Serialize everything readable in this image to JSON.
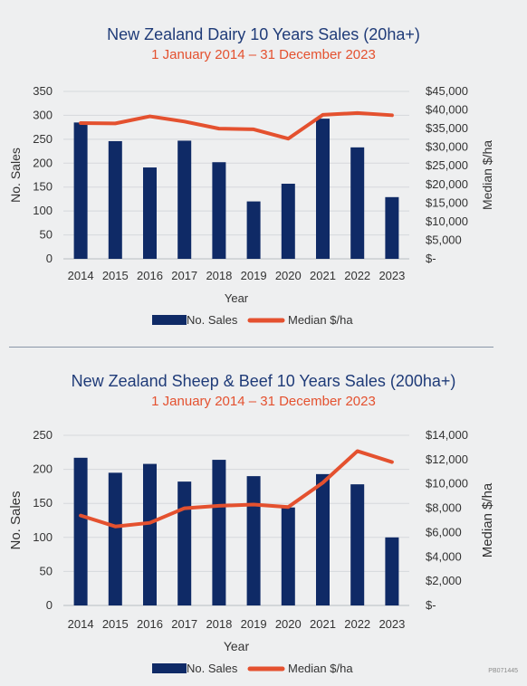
{
  "chart_data": [
    {
      "type": "bar",
      "title": "New Zealand Dairy 10 Years Sales (20ha+)",
      "subtitle": "1 January 2014 – 31 December 2023",
      "categories": [
        "2014",
        "2015",
        "2016",
        "2017",
        "2018",
        "2019",
        "2020",
        "2021",
        "2022",
        "2023"
      ],
      "xlabel": "Year",
      "ylabel": "No. Sales",
      "y2label": "Median $/ha",
      "ylim": [
        0,
        350
      ],
      "yticks": [
        "0",
        "50",
        "100",
        "150",
        "200",
        "250",
        "300",
        "350"
      ],
      "y2lim": [
        0,
        45000
      ],
      "y2ticks": [
        "$-",
        "$5,000",
        "$10,000",
        "$15,000",
        "$20,000",
        "$25,000",
        "$30,000",
        "$35,000",
        "$40,000",
        "$45,000"
      ],
      "series": [
        {
          "name": "No. Sales",
          "type": "bar",
          "axis": "left",
          "values": [
            285,
            246,
            191,
            247,
            202,
            120,
            157,
            293,
            233,
            129
          ]
        },
        {
          "name": "Median $/ha",
          "type": "line",
          "axis": "right",
          "values": [
            36500,
            36400,
            38300,
            36900,
            35000,
            34800,
            32300,
            38700,
            39200,
            38600
          ]
        }
      ],
      "grid": true,
      "legend": "bottom"
    },
    {
      "type": "bar",
      "title": "New Zealand Sheep & Beef 10 Years Sales (200ha+)",
      "subtitle": "1 January 2014 – 31 December 2023",
      "categories": [
        "2014",
        "2015",
        "2016",
        "2017",
        "2018",
        "2019",
        "2020",
        "2021",
        "2022",
        "2023"
      ],
      "xlabel": "Year",
      "ylabel": "No. Sales",
      "y2label": "Median $/ha",
      "ylim": [
        0,
        250
      ],
      "yticks": [
        "0",
        "50",
        "100",
        "150",
        "200",
        "250"
      ],
      "y2lim": [
        0,
        14000
      ],
      "y2ticks": [
        "$-",
        "$2,000",
        "$4,000",
        "$6,000",
        "$8,000",
        "$10,000",
        "$12,000",
        "$14,000"
      ],
      "series": [
        {
          "name": "No. Sales",
          "type": "bar",
          "axis": "left",
          "values": [
            217,
            195,
            208,
            182,
            214,
            190,
            144,
            193,
            178,
            100
          ]
        },
        {
          "name": "Median $/ha",
          "type": "line",
          "axis": "right",
          "values": [
            7400,
            6500,
            6800,
            8000,
            8200,
            8300,
            8100,
            10100,
            12700,
            11800
          ]
        }
      ],
      "grid": true,
      "legend": "bottom"
    }
  ],
  "colors": {
    "bar": "#0f2a66",
    "line": "#e4512f",
    "title": "#1f3b78",
    "subtitle": "#e4512f"
  },
  "footer_code": "PB071445"
}
